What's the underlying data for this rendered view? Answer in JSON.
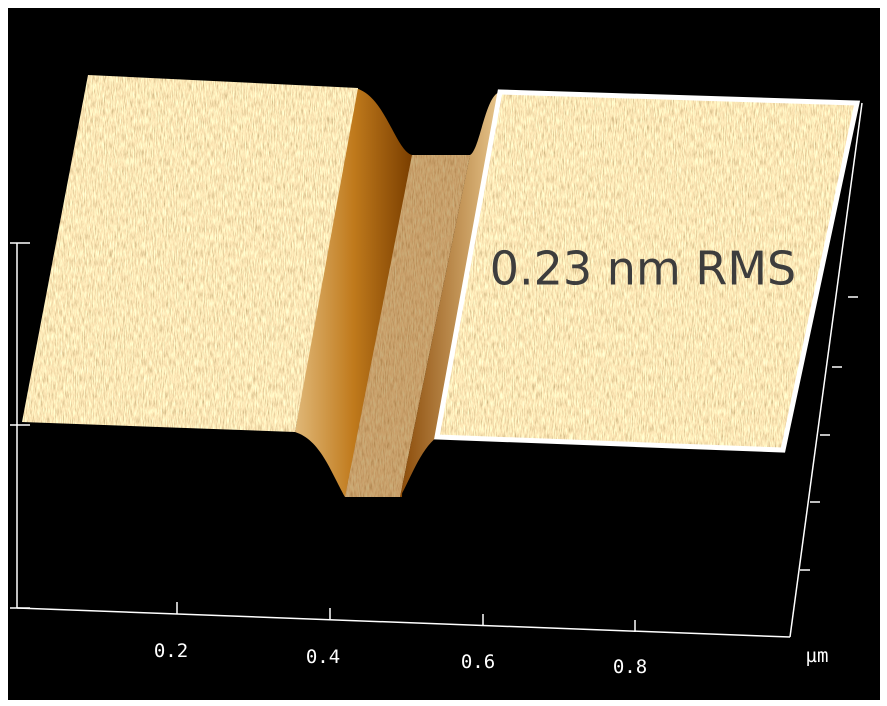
{
  "annotation": "0.23 nm RMS",
  "x_axis": {
    "ticks": [
      "0.2",
      "0.4",
      "0.6",
      "0.8"
    ],
    "unit": "µm"
  }
}
